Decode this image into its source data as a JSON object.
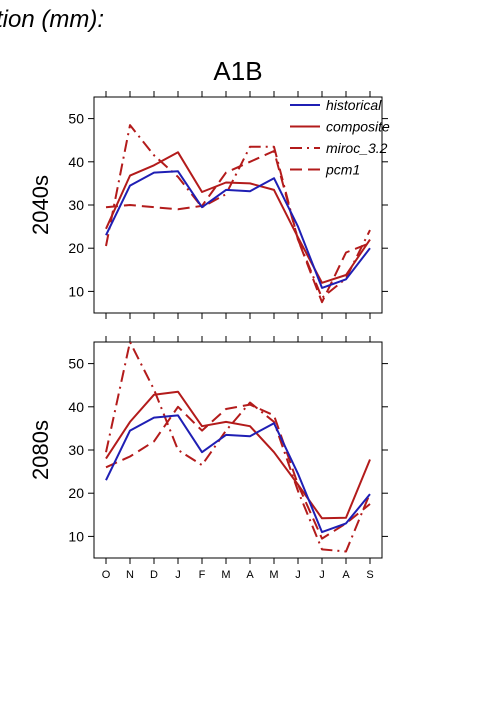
{
  "page_title": "tion (mm):",
  "scenario_title": "A1B",
  "colors": {
    "historical": "#1f1fb4",
    "model": "#b31b1b",
    "axis": "#000000"
  },
  "chart_data": [
    {
      "type": "line",
      "ylabel": "2040s",
      "categories": [
        "O",
        "N",
        "D",
        "J",
        "F",
        "M",
        "A",
        "M",
        "J",
        "J",
        "A",
        "S"
      ],
      "ylim": [
        5,
        55
      ],
      "yticks": [
        10,
        20,
        30,
        40,
        50
      ],
      "legend": "top-right",
      "series": [
        {
          "name": "historical",
          "color": "#1f1fb4",
          "dash": "solid",
          "values": [
            23,
            34.5,
            37.5,
            37.8,
            29.5,
            33.5,
            33.2,
            36.2,
            25,
            10.8,
            12.8,
            20
          ]
        },
        {
          "name": "composite",
          "color": "#b31b1b",
          "dash": "solid",
          "values": [
            24.5,
            36.8,
            39.2,
            42.2,
            33,
            35.2,
            35,
            33.5,
            22.5,
            12,
            13.8,
            22
          ]
        },
        {
          "name": "miroc_3.2",
          "color": "#b31b1b",
          "dash": "dashdot",
          "values": [
            20.5,
            48.5,
            41.5,
            36.5,
            29.5,
            32.5,
            43.5,
            43.5,
            22,
            8.5,
            13,
            24.2
          ]
        },
        {
          "name": "pcm1",
          "color": "#b31b1b",
          "dash": "dashed",
          "values": [
            29.5,
            30,
            29.5,
            29,
            29.8,
            37.5,
            40,
            42.5,
            22,
            7.5,
            19,
            21.2
          ]
        }
      ]
    },
    {
      "type": "line",
      "ylabel": "2080s",
      "categories": [
        "O",
        "N",
        "D",
        "J",
        "F",
        "M",
        "A",
        "M",
        "J",
        "J",
        "A",
        "S"
      ],
      "ylim": [
        5,
        55
      ],
      "yticks": [
        10,
        20,
        30,
        40,
        50
      ],
      "legend": "none",
      "series": [
        {
          "name": "historical",
          "color": "#1f1fb4",
          "dash": "solid",
          "values": [
            23,
            34.5,
            37.5,
            38,
            29.5,
            33.5,
            33.2,
            36.2,
            24.5,
            11,
            13,
            19.8
          ]
        },
        {
          "name": "composite",
          "color": "#b31b1b",
          "dash": "solid",
          "values": [
            28,
            36.5,
            42.8,
            43.5,
            35.5,
            36.5,
            35.5,
            29.5,
            22,
            14.2,
            14.3,
            27.8
          ]
        },
        {
          "name": "miroc_3.2",
          "color": "#b31b1b",
          "dash": "dashdot",
          "values": [
            29.5,
            55,
            44,
            30,
            26.5,
            34.5,
            41,
            36.5,
            20.5,
            7,
            6.5,
            20
          ]
        },
        {
          "name": "pcm1",
          "color": "#b31b1b",
          "dash": "dashed",
          "values": [
            26,
            28.5,
            32,
            40,
            34.5,
            39.5,
            40.5,
            38,
            22,
            9.5,
            13,
            17.5
          ]
        }
      ]
    }
  ]
}
